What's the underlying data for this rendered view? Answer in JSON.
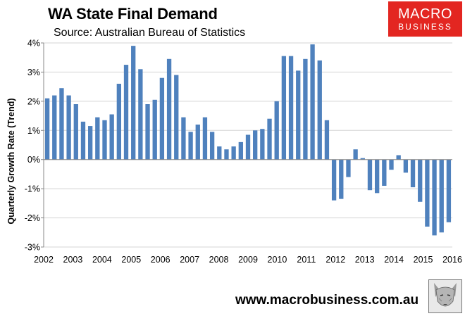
{
  "header": {
    "title": "WA State Final Demand",
    "subtitle": "Source: Australian Bureau of Statistics"
  },
  "logo": {
    "line1": "MACRO",
    "line2": "BUSINESS",
    "color": "#e32621"
  },
  "footer": {
    "url": "www.macrobusiness.com.au",
    "mascot_icon": "wolf-icon"
  },
  "colors": {
    "bar": "#4f81bd",
    "grid": "#d4d4d4",
    "axis": "#888888"
  },
  "chart_data": {
    "type": "bar",
    "title": "WA State Final Demand",
    "subtitle": "Source: Australian Bureau of Statistics",
    "xlabel": "",
    "ylabel": "Quarterly Growth Rate (Trend)",
    "ylim": [
      -3,
      4
    ],
    "yticks": [
      "-3%",
      "-2%",
      "-1%",
      "0%",
      "1%",
      "2%",
      "3%",
      "4%"
    ],
    "ytick_values": [
      -3,
      -2,
      -1,
      0,
      1,
      2,
      3,
      4
    ],
    "xtick_labels": [
      "2002",
      "2003",
      "2004",
      "2005",
      "2006",
      "2007",
      "2008",
      "2009",
      "2010",
      "2011",
      "2012",
      "2013",
      "2014",
      "2015",
      "2016"
    ],
    "grid": true,
    "legend": "none",
    "series": [
      {
        "frequency": "quarterly",
        "start": "2002 Q1",
        "values": [
          2.1,
          2.2,
          2.45,
          2.2,
          1.9,
          1.3,
          1.15,
          1.45,
          1.35,
          1.55,
          2.6,
          3.25,
          3.9,
          3.1,
          1.9,
          2.05,
          2.8,
          3.45,
          2.9,
          1.45,
          0.95,
          1.2,
          1.45,
          0.95,
          0.45,
          0.35,
          0.45,
          0.6,
          0.85,
          1.0,
          1.05,
          1.4,
          2.0,
          3.55,
          3.55,
          3.05,
          3.45,
          3.95,
          3.4,
          1.35,
          -1.4,
          -1.35,
          -0.6,
          0.35,
          0.05,
          -1.05,
          -1.15,
          -0.9,
          -0.35,
          0.15,
          -0.45,
          -0.95,
          -1.45,
          -2.3,
          -2.6,
          -2.5,
          -2.15
        ]
      }
    ]
  }
}
